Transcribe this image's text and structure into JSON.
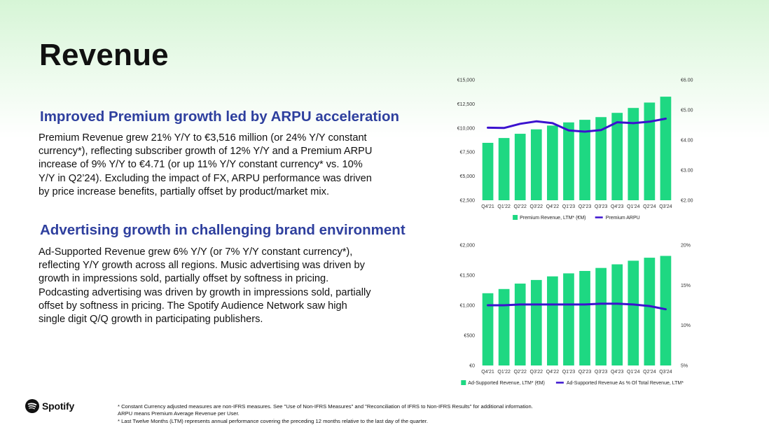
{
  "slide": {
    "title": "Revenue",
    "section1": {
      "heading": "Improved Premium growth led by ARPU acceleration",
      "body": "Premium Revenue grew 21% Y/Y to €3,516 million (or 24% Y/Y constant currency*), reflecting subscriber growth of 12% Y/Y and a Premium ARPU increase of 9% Y/Y to €4.71 (or up 11% Y/Y constant currency* vs. 10% Y/Y in Q2’24). Excluding the impact of FX, ARPU performance was driven by price increase benefits, partially offset by product/market mix."
    },
    "section2": {
      "heading": "Advertising growth in challenging brand environment",
      "body": "Ad-Supported Revenue grew 6% Y/Y (or 7% Y/Y constant currency*), reflecting Y/Y growth across all regions. Music advertising was driven by growth in impressions sold, partially offset by softness in pricing. Podcasting advertising was driven by growth in impressions sold, partially offset by softness in pricing. The Spotify Audience Network saw high single digit Q/Q growth in participating publishers."
    },
    "logo_text": "Spotify",
    "footnotes": [
      "* Constant Currency adjusted measures are non-IFRS measures. See \"Use of Non-IFRS Measures\" and \"Reconciliation of IFRS to Non-IFRS Results\" for additional information.",
      "ARPU means Premium Average Revenue per User.",
      "* Last Twelve Months (LTM) represents annual performance covering the preceding 12 months relative to the last day of the quarter."
    ]
  },
  "colors": {
    "bar": "#1ed882",
    "line": "#3b12cf",
    "heading": "#2e3f9e"
  },
  "chart_data": [
    {
      "type": "bar",
      "categories": [
        "Q4'21",
        "Q1'22",
        "Q2'22",
        "Q3'22",
        "Q4'22",
        "Q1'23",
        "Q2'23",
        "Q3'23",
        "Q4'23",
        "Q1'24",
        "Q2'24",
        "Q3'24"
      ],
      "left_axis": {
        "ylim": [
          2500,
          15000
        ],
        "ticks": [
          "€2,500",
          "€5,000",
          "€7,500",
          "€10,000",
          "€12,500",
          "€15,000"
        ]
      },
      "right_axis": {
        "ylim": [
          2.0,
          6.0
        ],
        "ticks": [
          "€2.00",
          "€3.00",
          "€4.00",
          "€5.00",
          "€6.00"
        ]
      },
      "series": [
        {
          "name": "Premium Revenue, LTM* (€M)",
          "kind": "bar",
          "axis": "left",
          "values": [
            8460,
            8960,
            9400,
            9860,
            10250,
            10580,
            10850,
            11130,
            11570,
            12080,
            12640,
            13250
          ]
        },
        {
          "name": "Premium ARPU",
          "kind": "line",
          "axis": "right",
          "values": [
            4.41,
            4.4,
            4.54,
            4.62,
            4.56,
            4.32,
            4.28,
            4.33,
            4.59,
            4.56,
            4.61,
            4.71
          ]
        }
      ],
      "legend": "bottom-center",
      "grid": false
    },
    {
      "type": "bar",
      "categories": [
        "Q4'21",
        "Q1'22",
        "Q2'22",
        "Q3'22",
        "Q4'22",
        "Q1'23",
        "Q2'23",
        "Q3'23",
        "Q4'23",
        "Q1'24",
        "Q2'24",
        "Q3'24"
      ],
      "left_axis": {
        "ylim": [
          0,
          2000
        ],
        "ticks": [
          "€0",
          "€500",
          "€1,000",
          "€1,500",
          "€2,000"
        ]
      },
      "right_axis": {
        "ylim": [
          5,
          20
        ],
        "ticks": [
          "5%",
          "10%",
          "15%",
          "20%"
        ]
      },
      "series": [
        {
          "name": "Ad-Supported Revenue, LTM* (€M)",
          "kind": "bar",
          "axis": "left",
          "values": [
            1200,
            1270,
            1360,
            1420,
            1480,
            1530,
            1570,
            1620,
            1680,
            1740,
            1790,
            1820
          ]
        },
        {
          "name": "Ad-Supported Revenue As % Of Total Revenue, LTM*",
          "kind": "line",
          "axis": "right",
          "values": [
            12.5,
            12.5,
            12.6,
            12.6,
            12.6,
            12.6,
            12.6,
            12.7,
            12.7,
            12.6,
            12.4,
            12.0
          ]
        }
      ],
      "legend": "bottom-center",
      "grid": false
    }
  ]
}
